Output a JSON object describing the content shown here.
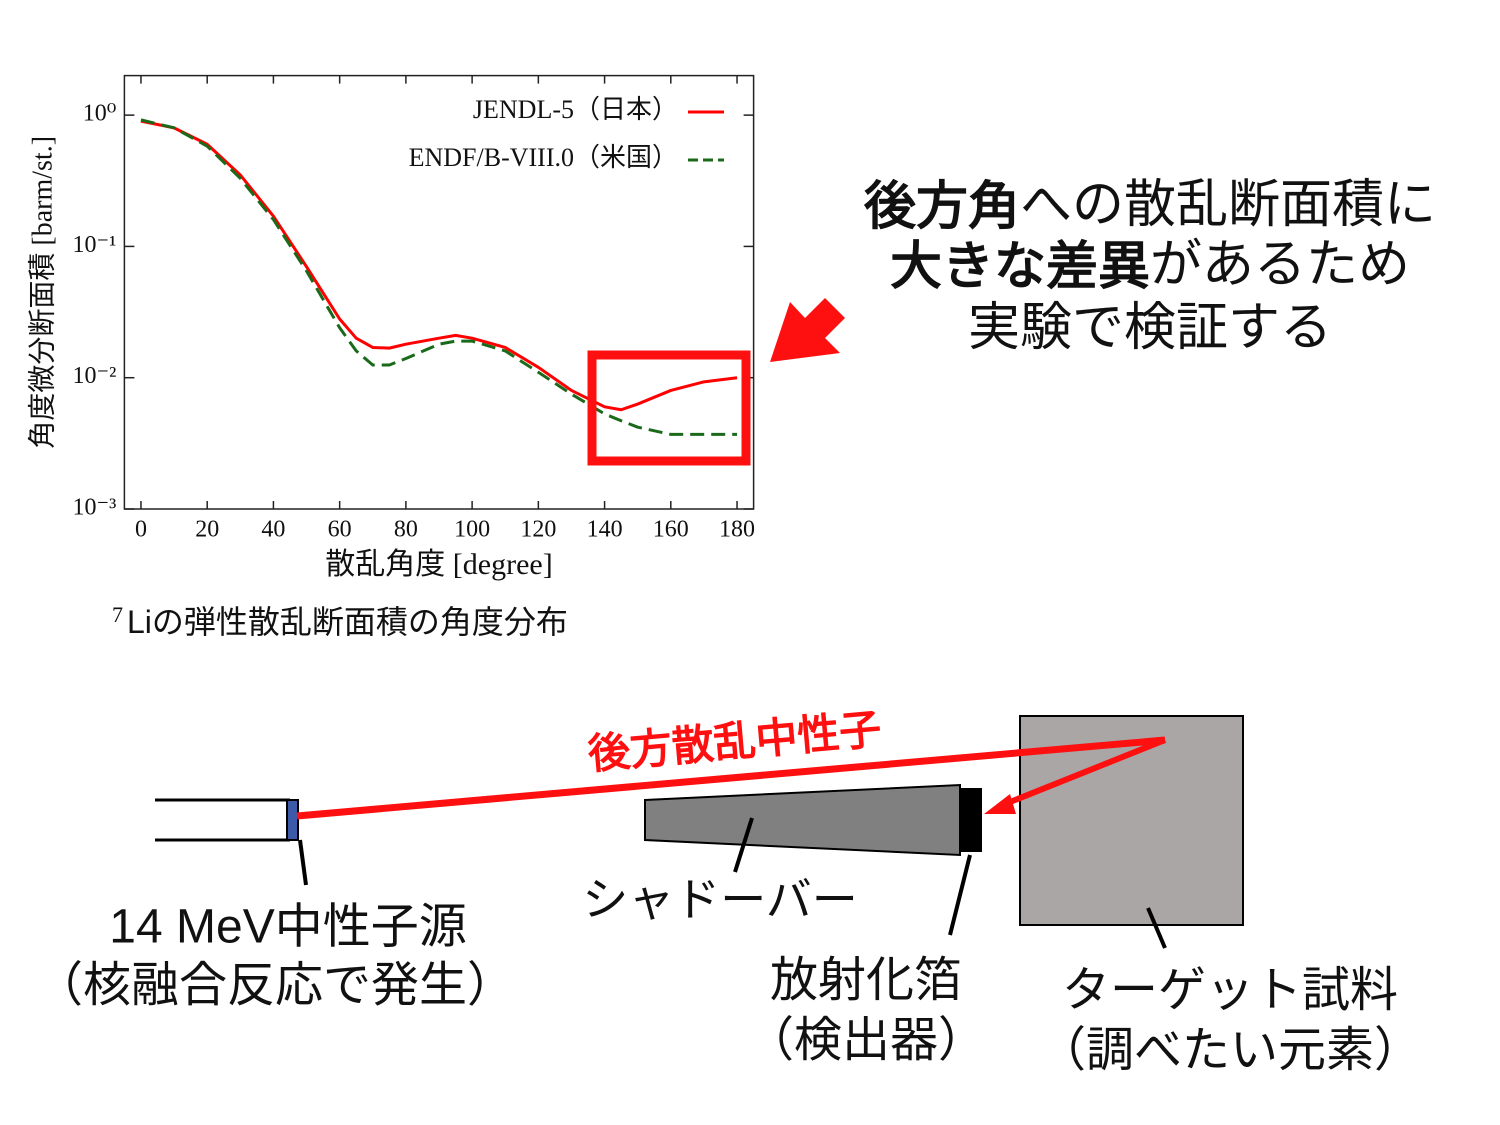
{
  "chart_data": {
    "type": "line",
    "x_label": "散乱角度 [degree]",
    "y_label": "角度微分断面積 [barm/st.]",
    "xlim": [
      -5,
      185
    ],
    "xticks": [
      0,
      20,
      40,
      60,
      80,
      100,
      120,
      140,
      160,
      180
    ],
    "ylim": [
      0.001,
      2
    ],
    "y_scale": "log",
    "yticks": [
      {
        "value": 1,
        "label": "10⁰"
      },
      {
        "value": 0.1,
        "label": "10⁻¹"
      },
      {
        "value": 0.01,
        "label": "10⁻²"
      },
      {
        "value": 0.001,
        "label": "10⁻³"
      }
    ],
    "legend": "upper right",
    "x": [
      0,
      10,
      20,
      30,
      40,
      50,
      60,
      65,
      70,
      75,
      80,
      90,
      95,
      100,
      110,
      120,
      130,
      140,
      145,
      150,
      160,
      170,
      180
    ],
    "series": [
      {
        "name": "JENDL-5（日本）",
        "color": "#ff0000",
        "dash": "solid",
        "values": [
          0.9,
          0.8,
          0.6,
          0.35,
          0.17,
          0.07,
          0.028,
          0.02,
          0.017,
          0.0168,
          0.018,
          0.02,
          0.021,
          0.02,
          0.017,
          0.012,
          0.008,
          0.006,
          0.0057,
          0.0063,
          0.008,
          0.0093,
          0.01
        ]
      },
      {
        "name": "ENDF/B-VIII.0（米国）",
        "color": "#1a6a1a",
        "dash": "dashed",
        "values": [
          0.92,
          0.8,
          0.58,
          0.33,
          0.16,
          0.065,
          0.024,
          0.016,
          0.0125,
          0.0125,
          0.014,
          0.018,
          0.019,
          0.019,
          0.016,
          0.011,
          0.0075,
          0.0053,
          0.0047,
          0.0042,
          0.0037,
          0.0037,
          0.0037
        ]
      }
    ]
  },
  "caption": {
    "superscript": "7",
    "text": "Liの弾性散乱断面積の角度分布"
  },
  "callout": {
    "lines": [
      [
        {
          "text": "後方角",
          "bold": true
        },
        {
          "text": "への散乱断面積に",
          "bold": false
        }
      ],
      [
        {
          "text": "大きな差異",
          "bold": true
        },
        {
          "text": "があるため",
          "bold": false
        }
      ],
      [
        {
          "text": "実験で検証する",
          "bold": false
        }
      ]
    ]
  },
  "diagram": {
    "beam_label": "後方散乱中性子",
    "source": [
      "14 MeV中性子源",
      "（核融合反応で発生）"
    ],
    "shadow_bar": "シャドーバー",
    "detector": [
      "放射化箔",
      "（検出器）"
    ],
    "target": [
      "ターゲット試料",
      "（調べたい元素）"
    ]
  }
}
